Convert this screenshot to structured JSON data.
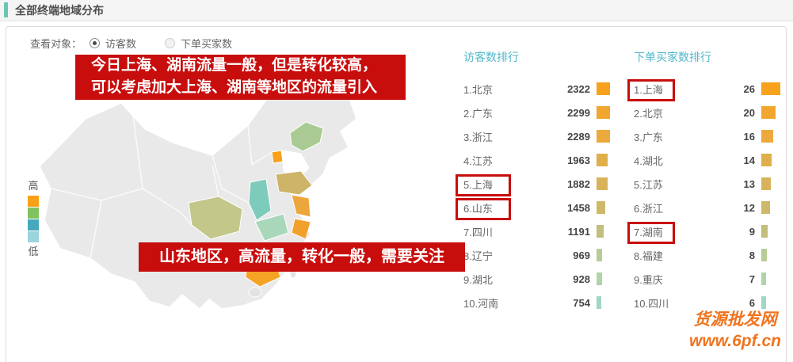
{
  "header": {
    "title": "全部终端地域分布"
  },
  "filter": {
    "label": "查看对象：",
    "options": [
      {
        "label": "访客数",
        "selected": true
      },
      {
        "label": "下单买家数",
        "selected": false
      }
    ]
  },
  "annotations": [
    {
      "line1": "今日上海、湖南流量一般，但是转化较高，",
      "line2": "可以考虑加大上海、湖南等地区的流量引入"
    },
    {
      "text": "山东地区，高流量，转化一般，需要关注"
    }
  ],
  "map": {
    "base_color": "#e9e9e9",
    "legend_high": "高",
    "legend_low": "低",
    "legend_colors": [
      "#f7a018",
      "#7fc35e",
      "#45a8bc",
      "#9ad5dc"
    ],
    "regions": [
      {
        "name": "吉林",
        "color": "#a9cb93"
      },
      {
        "name": "北京",
        "color": "#f7a018"
      },
      {
        "name": "山东",
        "color": "#cdb469"
      },
      {
        "name": "江苏",
        "color": "#eda63c"
      },
      {
        "name": "浙江",
        "color": "#f2a02c"
      },
      {
        "name": "陕西",
        "color": "#7dcbbb"
      },
      {
        "name": "河南",
        "color": "#a9d7b9"
      },
      {
        "name": "四川",
        "color": "#c3c78a"
      },
      {
        "name": "广东",
        "color": "#f5a325"
      }
    ]
  },
  "chart_data": [
    {
      "type": "bar",
      "title": "访客数排行",
      "categories": [
        "北京",
        "广东",
        "浙江",
        "江苏",
        "上海",
        "山东",
        "四川",
        "辽宁",
        "湖北",
        "河南"
      ],
      "values": [
        2322,
        2299,
        2289,
        1963,
        1882,
        1458,
        1191,
        969,
        928,
        754
      ],
      "highlighted_ranks": [
        5,
        6
      ],
      "bar_max_width": 17,
      "bar_colors": [
        "#f7a21d",
        "#f1a62f",
        "#ecaa3c",
        "#dfaf4b",
        "#d8b35b",
        "#ceb96a",
        "#c3be7b",
        "#b8cc95",
        "#afd4a9",
        "#9fd7c5"
      ]
    },
    {
      "type": "bar",
      "title": "下单买家数排行",
      "categories": [
        "上海",
        "北京",
        "广东",
        "湖北",
        "江苏",
        "浙江",
        "湖南",
        "福建",
        "重庆",
        "四川"
      ],
      "values": [
        26,
        20,
        16,
        14,
        13,
        12,
        9,
        8,
        7,
        6
      ],
      "highlighted_ranks": [
        1,
        7
      ],
      "bar_max_width": 24,
      "bar_colors": [
        "#f7a21d",
        "#f1a62f",
        "#ecaa3c",
        "#dfaf4b",
        "#d8b35b",
        "#ceb96a",
        "#c3be7b",
        "#b8cc95",
        "#afd4a9",
        "#9fd7c5"
      ]
    }
  ],
  "watermark": {
    "line1": "货源批发网",
    "line2": "www.6pf.cn"
  }
}
